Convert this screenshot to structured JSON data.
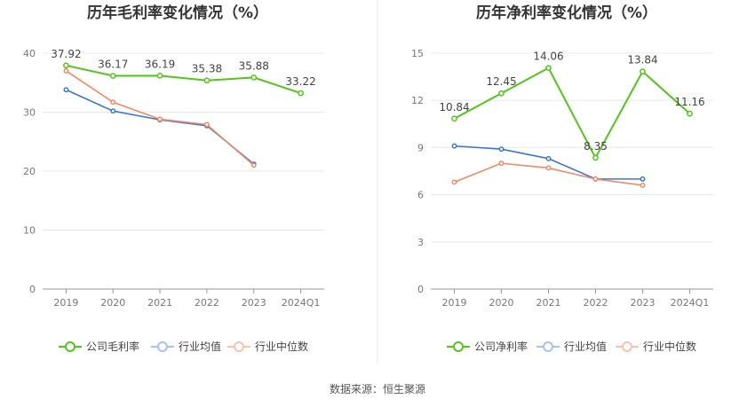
{
  "source": "数据来源：恒生聚源",
  "chart_data": [
    {
      "type": "line",
      "title": "历年毛利率变化情况（%）",
      "categories": [
        "2019",
        "2020",
        "2021",
        "2022",
        "2023",
        "2024Q1"
      ],
      "ylim": [
        0,
        40
      ],
      "yticks": [
        0,
        10,
        20,
        30,
        40
      ],
      "grid": true,
      "legend": "bottom",
      "series": [
        {
          "name": "公司毛利率",
          "color": "#52c41a",
          "values": [
            37.92,
            36.17,
            36.19,
            35.38,
            35.88,
            33.22
          ],
          "labels": [
            "37.92",
            "36.17",
            "36.19",
            "35.38",
            "35.88",
            "33.22"
          ]
        },
        {
          "name": "行业均值",
          "color": "#3a76d8",
          "values": [
            33.8,
            30.2,
            28.7,
            27.7,
            21.2,
            null
          ]
        },
        {
          "name": "行业中位数",
          "color": "#f08860",
          "values": [
            37.0,
            31.7,
            28.8,
            27.9,
            21.0,
            null
          ]
        }
      ]
    },
    {
      "type": "line",
      "title": "历年净利率变化情况（%）",
      "categories": [
        "2019",
        "2020",
        "2021",
        "2022",
        "2023",
        "2024Q1"
      ],
      "ylim": [
        0,
        15
      ],
      "yticks": [
        0,
        3,
        6,
        9,
        12,
        15
      ],
      "grid": true,
      "legend": "bottom",
      "series": [
        {
          "name": "公司净利率",
          "color": "#52c41a",
          "values": [
            10.84,
            12.45,
            14.06,
            8.35,
            13.84,
            11.16
          ],
          "labels": [
            "10.84",
            "12.45",
            "14.06",
            "8.35",
            "13.84",
            "11.16"
          ]
        },
        {
          "name": "行业均值",
          "color": "#3a76d8",
          "values": [
            9.1,
            8.9,
            8.3,
            7.0,
            7.0,
            null
          ]
        },
        {
          "name": "行业中位数",
          "color": "#f08860",
          "values": [
            6.8,
            8.0,
            7.7,
            7.0,
            6.6,
            null
          ]
        }
      ]
    }
  ]
}
